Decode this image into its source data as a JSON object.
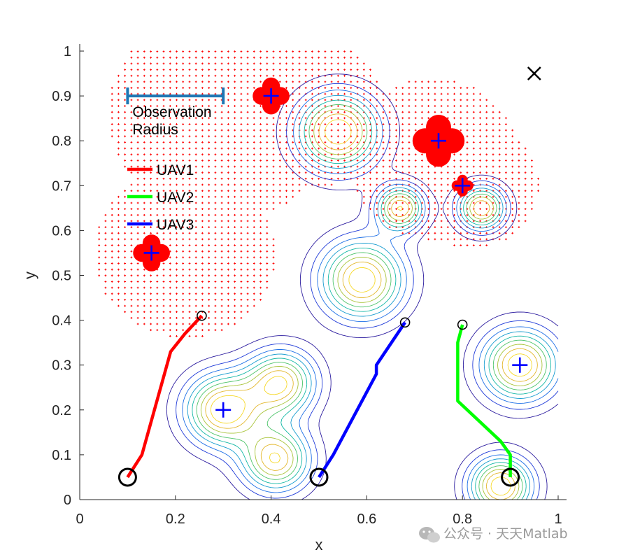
{
  "chart_data": {
    "type": "contour",
    "xlabel": "x",
    "ylabel": "y",
    "xlim": [
      0,
      1
    ],
    "ylim": [
      0,
      1
    ],
    "xticks": [
      "0",
      "0.2",
      "0.4",
      "0.6",
      "0.8",
      "1"
    ],
    "yticks": [
      "0",
      "0.1",
      "0.2",
      "0.3",
      "0.4",
      "0.5",
      "0.6",
      "0.7",
      "0.8",
      "0.9",
      "1"
    ],
    "grid": false,
    "legend_placement": "top-left",
    "observation_radius_label": "Observation Radius",
    "observation_radius_bar": {
      "x_start": 0.1,
      "x_end": 0.3,
      "y": 0.9,
      "color": "#1f77b4"
    },
    "density_peaks": [
      {
        "x": 0.1,
        "y": 0.12,
        "sigma": 0.055,
        "amp": 0.0
      },
      {
        "x": 0.3,
        "y": 0.2,
        "sigma": 0.055,
        "amp": 1.0
      },
      {
        "x": 0.42,
        "y": 0.26,
        "sigma": 0.05,
        "amp": 0.9
      },
      {
        "x": 0.41,
        "y": 0.09,
        "sigma": 0.05,
        "amp": 0.9
      },
      {
        "x": 0.59,
        "y": 0.49,
        "sigma": 0.06,
        "amp": 1.0
      },
      {
        "x": 0.54,
        "y": 0.82,
        "sigma": 0.06,
        "amp": 1.0
      },
      {
        "x": 0.67,
        "y": 0.65,
        "sigma": 0.035,
        "amp": 0.9
      },
      {
        "x": 0.84,
        "y": 0.65,
        "sigma": 0.035,
        "amp": 0.9
      },
      {
        "x": 0.92,
        "y": 0.3,
        "sigma": 0.055,
        "amp": 1.0
      },
      {
        "x": 0.88,
        "y": 0.03,
        "sigma": 0.045,
        "amp": 1.0
      }
    ],
    "targets_blue": [
      {
        "x": 0.15,
        "y": 0.55
      },
      {
        "x": 0.4,
        "y": 0.9
      },
      {
        "x": 0.75,
        "y": 0.8
      },
      {
        "x": 0.8,
        "y": 0.7
      },
      {
        "x": 0.3,
        "y": 0.2
      },
      {
        "x": 0.92,
        "y": 0.3
      }
    ],
    "targets_found": [
      {
        "x": 0.15,
        "y": 0.55,
        "size": "medium"
      },
      {
        "x": 0.4,
        "y": 0.9,
        "size": "medium"
      },
      {
        "x": 0.75,
        "y": 0.8,
        "size": "large"
      },
      {
        "x": 0.8,
        "y": 0.7,
        "size": "small"
      }
    ],
    "observed_regions": [
      {
        "x": 0.22,
        "y": 0.55,
        "r": 0.19
      },
      {
        "x": 0.3,
        "y": 0.86,
        "r": 0.24
      },
      {
        "x": 0.47,
        "y": 0.86,
        "r": 0.17
      },
      {
        "x": 0.74,
        "y": 0.76,
        "r": 0.18
      },
      {
        "x": 0.82,
        "y": 0.7,
        "r": 0.14
      }
    ],
    "goal_marker": {
      "x": 0.95,
      "y": 0.95,
      "symbol": "x"
    },
    "series": [
      {
        "name": "UAV1",
        "color": "#ff0000",
        "x": [
          0.1,
          0.13,
          0.19,
          0.22,
          0.255
        ],
        "y": [
          0.05,
          0.1,
          0.33,
          0.37,
          0.41
        ]
      },
      {
        "name": "UAV2",
        "color": "#00ff00",
        "x": [
          0.9,
          0.9,
          0.88,
          0.79,
          0.79,
          0.8
        ],
        "y": [
          0.05,
          0.1,
          0.13,
          0.22,
          0.35,
          0.39
        ]
      },
      {
        "name": "UAV3",
        "color": "#0000ff",
        "x": [
          0.5,
          0.53,
          0.62,
          0.62,
          0.68
        ],
        "y": [
          0.05,
          0.1,
          0.28,
          0.3,
          0.395
        ]
      }
    ]
  },
  "watermark": {
    "text": "公众号 · 天天Matlab"
  }
}
